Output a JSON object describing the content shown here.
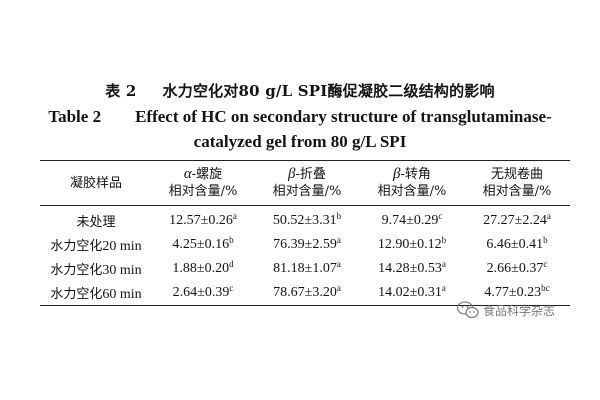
{
  "title": {
    "cn_label": "表 2",
    "cn_text": "水力空化对80 g/L SPI酶促凝胶二级结构的影响",
    "en_label": "Table 2",
    "en_line1": "Effect of HC on secondary structure of transglutaminase-",
    "en_line2": "catalyzed gel from 80 g/L SPI"
  },
  "table": {
    "row_header": "凝胶样品",
    "columns": [
      {
        "greek": "α",
        "name": "-螺旋",
        "sub": "相对含量/%"
      },
      {
        "greek": "β",
        "name": "-折叠",
        "sub": "相对含量/%"
      },
      {
        "greek": "β",
        "name": "-转角",
        "sub": "相对含量/%"
      },
      {
        "greek": "",
        "name": "无规卷曲",
        "sub": "相对含量/%"
      }
    ],
    "rows": [
      {
        "label": "未处理",
        "label_num": "",
        "cells": [
          {
            "v": "12.57±0.26",
            "s": "a"
          },
          {
            "v": "50.52±3.31",
            "s": "b"
          },
          {
            "v": "9.74±0.29",
            "s": "c"
          },
          {
            "v": "27.27±2.24",
            "s": "a"
          }
        ]
      },
      {
        "label": "水力空化",
        "label_num": "20 min",
        "cells": [
          {
            "v": "4.25±0.16",
            "s": "b"
          },
          {
            "v": "76.39±2.59",
            "s": "a"
          },
          {
            "v": "12.90±0.12",
            "s": "b"
          },
          {
            "v": "6.46±0.41",
            "s": "b"
          }
        ]
      },
      {
        "label": "水力空化",
        "label_num": "30 min",
        "cells": [
          {
            "v": "1.88±0.20",
            "s": "d"
          },
          {
            "v": "81.18±1.07",
            "s": "a"
          },
          {
            "v": "14.28±0.53",
            "s": "a"
          },
          {
            "v": "2.66±0.37",
            "s": "c"
          }
        ]
      },
      {
        "label": "水力空化",
        "label_num": "60 min",
        "cells": [
          {
            "v": "2.64±0.39",
            "s": "c"
          },
          {
            "v": "78.67±3.20",
            "s": "a"
          },
          {
            "v": "14.02±0.31",
            "s": "a"
          },
          {
            "v": "4.77±0.23",
            "s": "bc"
          }
        ]
      }
    ]
  },
  "watermark": {
    "icon": "wechat-icon",
    "text": "食品科学杂志"
  }
}
